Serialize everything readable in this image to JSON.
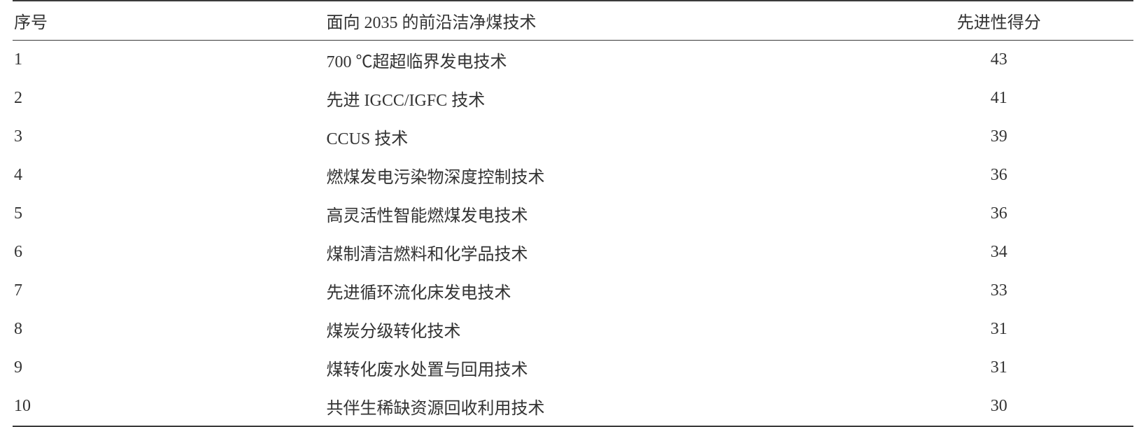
{
  "table": {
    "columns": [
      {
        "key": "index",
        "label": "序号",
        "class": "col-index",
        "align": "left"
      },
      {
        "key": "tech",
        "label": "面向 2035 的前沿洁净煤技术",
        "class": "col-tech",
        "align": "left"
      },
      {
        "key": "score",
        "label": "先进性得分",
        "class": "col-score",
        "align": "center"
      }
    ],
    "rows": [
      {
        "index": "1",
        "tech": "700 ℃超超临界发电技术",
        "score": "43"
      },
      {
        "index": "2",
        "tech": "先进 IGCC/IGFC 技术",
        "score": "41"
      },
      {
        "index": "3",
        "tech": "CCUS 技术",
        "score": "39"
      },
      {
        "index": "4",
        "tech": "燃煤发电污染物深度控制技术",
        "score": "36"
      },
      {
        "index": "5",
        "tech": "高灵活性智能燃煤发电技术",
        "score": "36"
      },
      {
        "index": "6",
        "tech": "煤制清洁燃料和化学品技术",
        "score": "34"
      },
      {
        "index": "7",
        "tech": "先进循环流化床发电技术",
        "score": "33"
      },
      {
        "index": "8",
        "tech": "煤炭分级转化技术",
        "score": "31"
      },
      {
        "index": "9",
        "tech": "煤转化废水处置与回用技术",
        "score": "31"
      },
      {
        "index": "10",
        "tech": "共伴生稀缺资源回收利用技术",
        "score": "30"
      }
    ],
    "border_color": "#3a3a3a",
    "text_color": "#333333",
    "background_color": "#ffffff",
    "header_fontsize": 24,
    "cell_fontsize": 24
  }
}
